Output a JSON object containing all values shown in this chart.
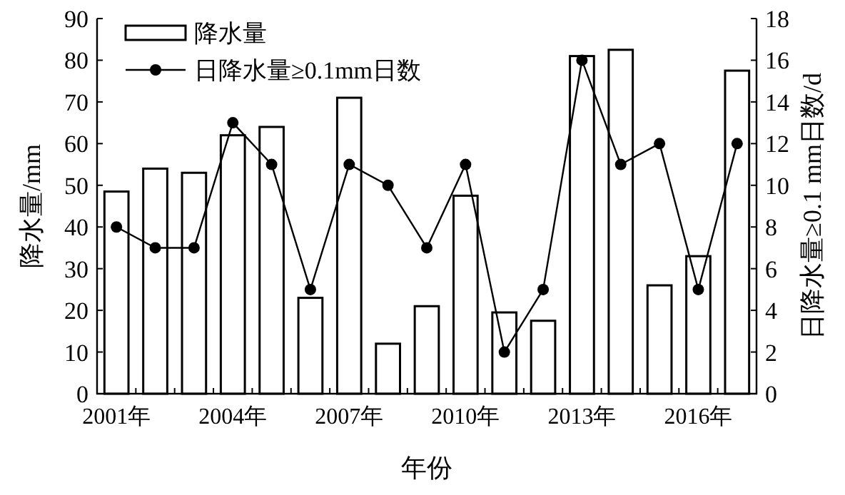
{
  "chart_data": {
    "type": "bar",
    "xlabel": "年份",
    "ylabel": "降水量/mm",
    "y2label": "日降水量≥0.1 mm日数/d",
    "categories": [
      "2001年",
      null,
      null,
      "2004年",
      null,
      null,
      "2007年",
      null,
      null,
      "2010年",
      null,
      null,
      "2013年",
      null,
      null,
      "2016年",
      null
    ],
    "series": [
      {
        "name": "降水量",
        "color": "#ffffff",
        "values": [
          48.5,
          54,
          53,
          62,
          64,
          23,
          71,
          12,
          21,
          47.5,
          19.5,
          17.5,
          81,
          82.5,
          26,
          33,
          77.5
        ]
      },
      {
        "name": "日降水量≥0.1mm日数",
        "type": "line",
        "axis": "y2",
        "color": "#000000",
        "marker": "circle",
        "values": [
          8,
          7,
          7,
          13,
          11,
          5,
          11,
          10,
          7,
          11,
          2,
          5,
          16,
          11,
          12,
          5,
          12
        ]
      }
    ],
    "ylim": [
      0,
      90
    ],
    "yticks": [
      0,
      10,
      20,
      30,
      40,
      50,
      60,
      70,
      80,
      90
    ],
    "y2lim": [
      0,
      18
    ],
    "y2ticks": [
      0,
      2,
      4,
      6,
      8,
      10,
      12,
      14,
      16,
      18
    ],
    "legend": "top left"
  }
}
